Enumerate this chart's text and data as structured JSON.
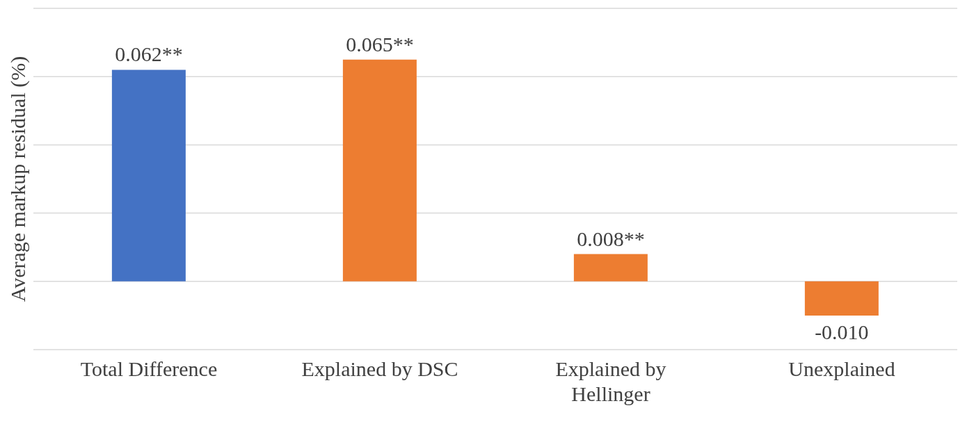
{
  "chart_data": {
    "type": "bar",
    "ylabel": "Average markup residual  (%)",
    "categories": [
      "Total Difference",
      "Explained by DSC",
      "Explained by Hellinger",
      "Unexplained"
    ],
    "values": [
      0.062,
      0.065,
      0.008,
      -0.01
    ],
    "colors": [
      "#4472c4",
      "#ed7d31",
      "#ed7d31",
      "#ed7d31"
    ],
    "value_labels": [
      "0.062**",
      "0.065**",
      "0.008**",
      "-0.010"
    ],
    "ylim": [
      -0.02,
      0.08
    ],
    "yticks": [
      {
        "value": -0.02,
        "label": null
      },
      {
        "value": 0,
        "label": null
      },
      {
        "value": 0.02,
        "label": null
      },
      {
        "value": 0.04,
        "label": null
      },
      {
        "value": 0.06,
        "label": null
      },
      {
        "value": 0.08,
        "label": null
      }
    ],
    "grid": "y",
    "tick_labels": "x"
  }
}
